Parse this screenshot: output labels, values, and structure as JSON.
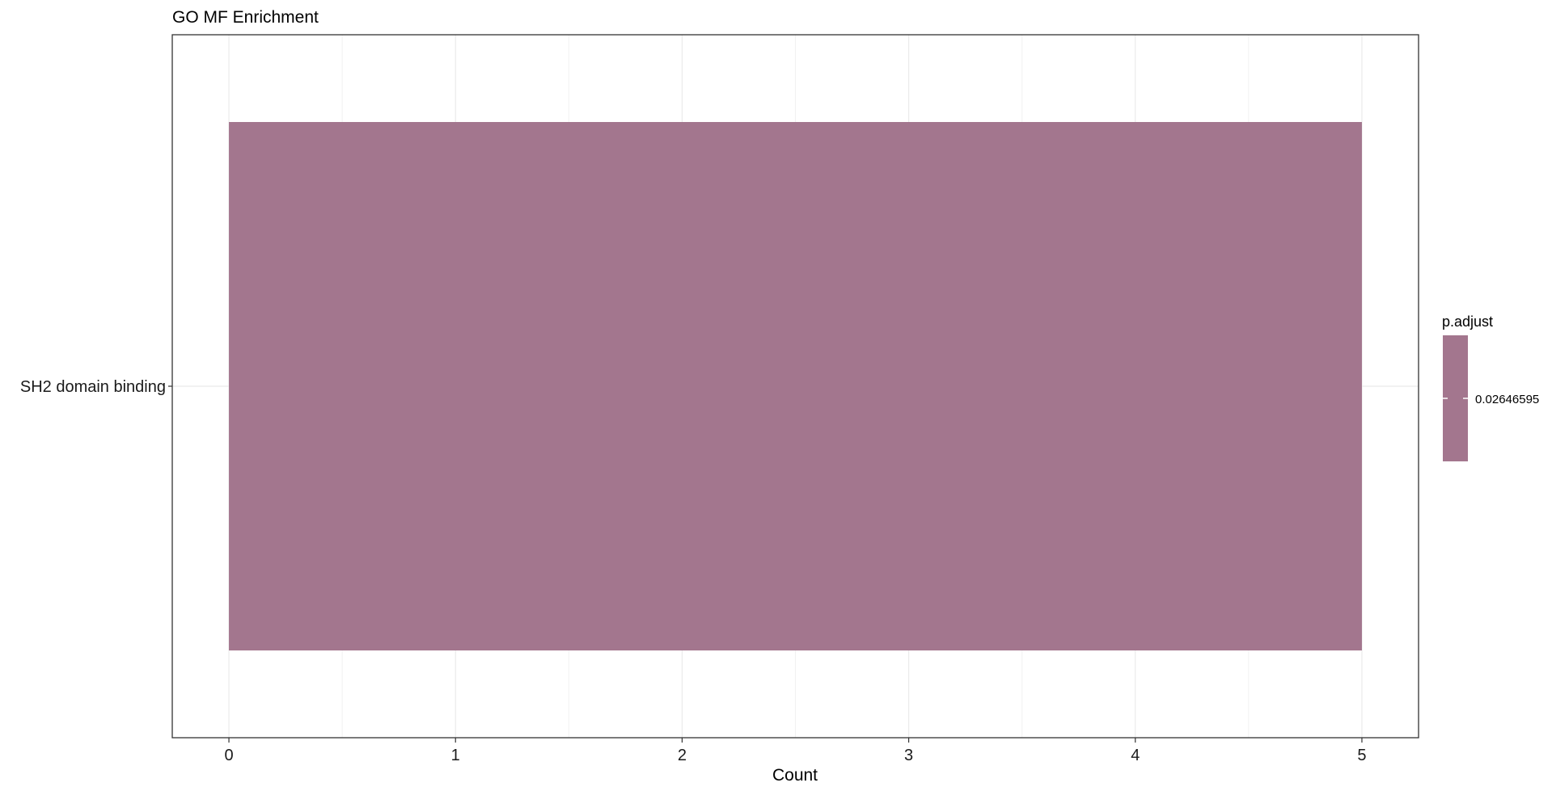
{
  "chart_data": {
    "type": "bar",
    "orientation": "horizontal",
    "title": "GO MF Enrichment",
    "xlabel": "Count",
    "ylabel": "",
    "categories": [
      "SH2 domain binding"
    ],
    "values": [
      5
    ],
    "xlim": [
      -0.25,
      5.25
    ],
    "x_ticks": [
      "0",
      "1",
      "2",
      "3",
      "4",
      "5"
    ],
    "grid": true,
    "bar_color": "#a3768e",
    "legend": {
      "title": "p.adjust",
      "placement": "right",
      "labels": [
        "0.02646595"
      ],
      "color": "#a3768e"
    }
  }
}
